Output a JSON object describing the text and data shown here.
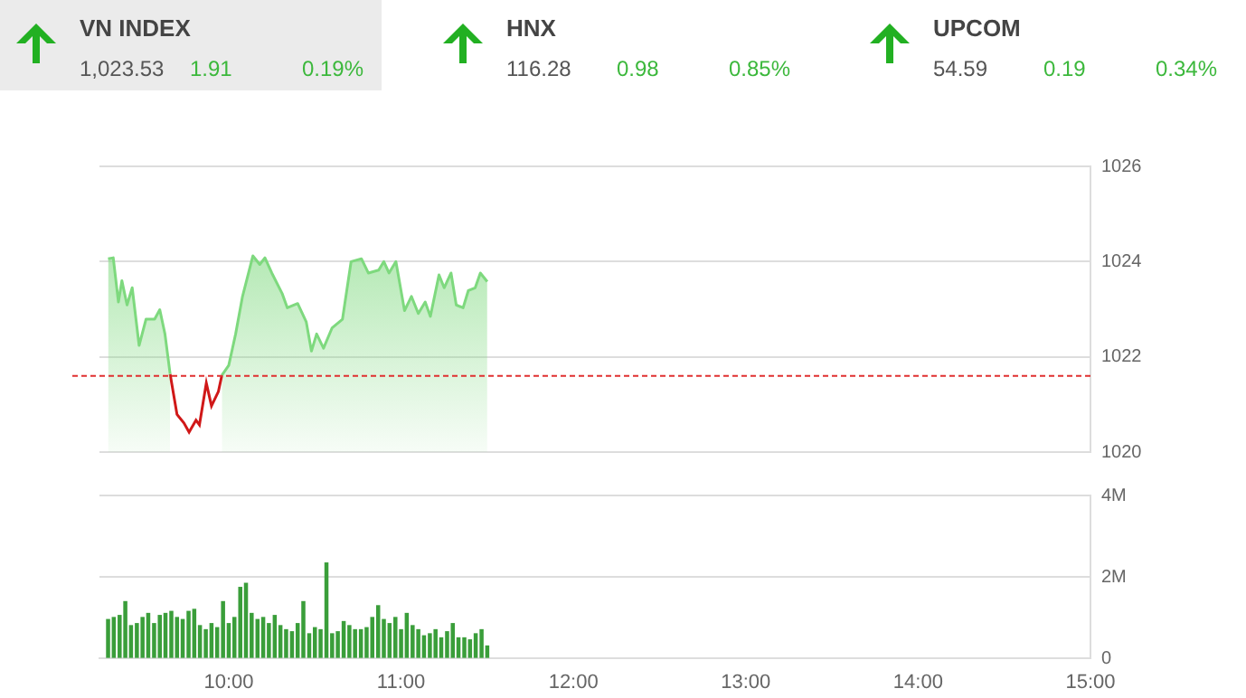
{
  "chart_data": [
    {
      "type": "other",
      "annotations": [
        "VN INDEX",
        "1,023.53",
        "1.91",
        "0.19%",
        "HNX",
        "116.28",
        "0.98",
        "0.85%",
        "UPCOM",
        "54.59",
        "0.19",
        "0.34%"
      ]
    },
    {
      "type": "area",
      "xlim": [
        9.25,
        15
      ],
      "ylim": [
        1020,
        1026
      ],
      "yticks": [
        1020,
        1022,
        1024,
        1026
      ],
      "tick_labels": "y",
      "grid": "y",
      "legend": false,
      "series": [
        {
          "color": "#7ed97e",
          "x": [
            9.3,
            9.33,
            9.36,
            9.38,
            9.41,
            9.44,
            9.48,
            9.52,
            9.57,
            9.6,
            9.63,
            9.66
          ],
          "values": [
            1024.06,
            1024.08,
            1023.15,
            1023.6,
            1023.09,
            1023.45,
            1022.24,
            1022.79,
            1022.79,
            1022.99,
            1022.48,
            1021.64
          ]
        },
        {
          "type": "line",
          "color": "#d01818",
          "x": [
            9.66,
            9.7,
            9.74,
            9.77,
            9.81,
            9.83,
            9.87,
            9.9,
            9.94,
            9.96
          ],
          "values": [
            1021.64,
            1020.79,
            1020.61,
            1020.42,
            1020.67,
            1020.57,
            1021.45,
            1020.97,
            1021.27,
            1021.61
          ]
        },
        {
          "color": "#7ed97e",
          "x": [
            9.96,
            10,
            10.04,
            10.08,
            10.14,
            10.18,
            10.21,
            10.25,
            10.31,
            10.34,
            10.4,
            10.45,
            10.48,
            10.51,
            10.55,
            10.6,
            10.66,
            10.71,
            10.77,
            10.81,
            10.87,
            10.9,
            10.93,
            10.97,
            11.02,
            11.06,
            11.1,
            11.14,
            11.17,
            11.22,
            11.25,
            11.29,
            11.32,
            11.36,
            11.39,
            11.43,
            11.46,
            11.5
          ],
          "values": [
            1021.61,
            1021.82,
            1022.48,
            1023.27,
            1024.12,
            1023.94,
            1024.08,
            1023.76,
            1023.33,
            1023.03,
            1023.12,
            1022.73,
            1022.12,
            1022.48,
            1022.18,
            1022.61,
            1022.79,
            1024.0,
            1024.06,
            1023.76,
            1023.82,
            1024.0,
            1023.76,
            1024.0,
            1022.97,
            1023.27,
            1022.91,
            1023.15,
            1022.85,
            1023.72,
            1023.45,
            1023.76,
            1023.09,
            1023.03,
            1023.39,
            1023.45,
            1023.76,
            1023.58
          ]
        }
      ],
      "ref_lines": [
        {
          "axis": "y",
          "value": 1021.6,
          "color": "#e03030",
          "line_style": "dashed"
        }
      ]
    },
    {
      "type": "bar",
      "xlim": [
        9.25,
        15
      ],
      "xticks": [
        {
          "value": 10,
          "label": "10:00"
        },
        {
          "value": 11,
          "label": "11:00"
        },
        {
          "value": 12,
          "label": "12:00"
        },
        {
          "value": 13,
          "label": "13:00"
        },
        {
          "value": 14,
          "label": "14:00"
        },
        {
          "value": 15,
          "label": "15:00"
        }
      ],
      "ylim": [
        0,
        4
      ],
      "yticks": [
        0,
        {
          "value": 2,
          "label": "2M"
        },
        {
          "value": 4,
          "label": "4M"
        }
      ],
      "grid": "y",
      "legend": false,
      "x": [
        9.3,
        9.333,
        9.367,
        9.4,
        9.433,
        9.467,
        9.5,
        9.533,
        9.567,
        9.6,
        9.633,
        9.667,
        9.7,
        9.733,
        9.767,
        9.8,
        9.833,
        9.867,
        9.9,
        9.933,
        9.967,
        10,
        10.033,
        10.067,
        10.1,
        10.133,
        10.167,
        10.2,
        10.233,
        10.267,
        10.3,
        10.333,
        10.367,
        10.4,
        10.433,
        10.467,
        10.5,
        10.533,
        10.567,
        10.6,
        10.633,
        10.667,
        10.7,
        10.733,
        10.767,
        10.8,
        10.833,
        10.867,
        10.9,
        10.933,
        10.967,
        11,
        11.033,
        11.067,
        11.1,
        11.133,
        11.167,
        11.2,
        11.233,
        11.267,
        11.3,
        11.333,
        11.367,
        11.4,
        11.433,
        11.467,
        11.5
      ],
      "series": [
        {
          "color": "#3a9e3a",
          "values": [
            0.95,
            1.0,
            1.05,
            1.39,
            0.8,
            0.85,
            1.0,
            1.1,
            0.85,
            1.05,
            1.1,
            1.15,
            1.0,
            0.95,
            1.15,
            1.2,
            0.8,
            0.7,
            0.85,
            0.75,
            1.39,
            0.85,
            1.0,
            1.74,
            1.84,
            1.1,
            0.95,
            1.0,
            0.85,
            1.05,
            0.8,
            0.7,
            0.65,
            0.85,
            1.39,
            0.6,
            0.75,
            0.7,
            2.34,
            0.6,
            0.65,
            0.9,
            0.8,
            0.7,
            0.7,
            0.75,
            1.0,
            1.29,
            0.95,
            0.85,
            1.0,
            0.7,
            1.1,
            0.8,
            0.7,
            0.55,
            0.6,
            0.7,
            0.5,
            0.65,
            0.85,
            0.5,
            0.5,
            0.45,
            0.6,
            0.7,
            0.3
          ]
        }
      ]
    }
  ]
}
